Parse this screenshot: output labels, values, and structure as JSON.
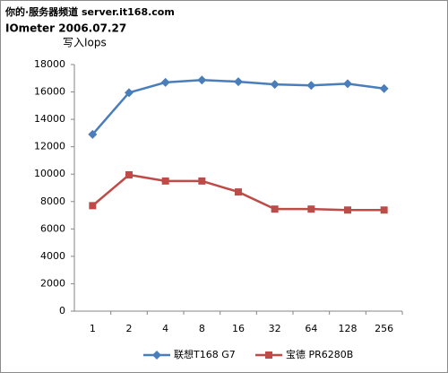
{
  "chart_data": {
    "type": "line",
    "watermark": "你的·服务器频道 server.it168.com",
    "subtitle": "IOmeter 2006.07.27",
    "title": "写入Iops",
    "categories": [
      "1",
      "2",
      "4",
      "8",
      "16",
      "32",
      "64",
      "128",
      "256"
    ],
    "series": [
      {
        "name": "联想T168 G7",
        "color": "#4a7ebb",
        "marker": "diamond",
        "values": [
          12900,
          15950,
          16700,
          16870,
          16750,
          16550,
          16480,
          16600,
          16250
        ]
      },
      {
        "name": "宝德 PR6280B",
        "color": "#be4b48",
        "marker": "square",
        "values": [
          7700,
          9950,
          9500,
          9500,
          8700,
          7450,
          7450,
          7380,
          7380
        ]
      }
    ],
    "ylim": [
      0,
      18000
    ],
    "yticks": [
      0,
      2000,
      4000,
      6000,
      8000,
      10000,
      12000,
      14000,
      16000,
      18000
    ],
    "legend": "bottom"
  }
}
